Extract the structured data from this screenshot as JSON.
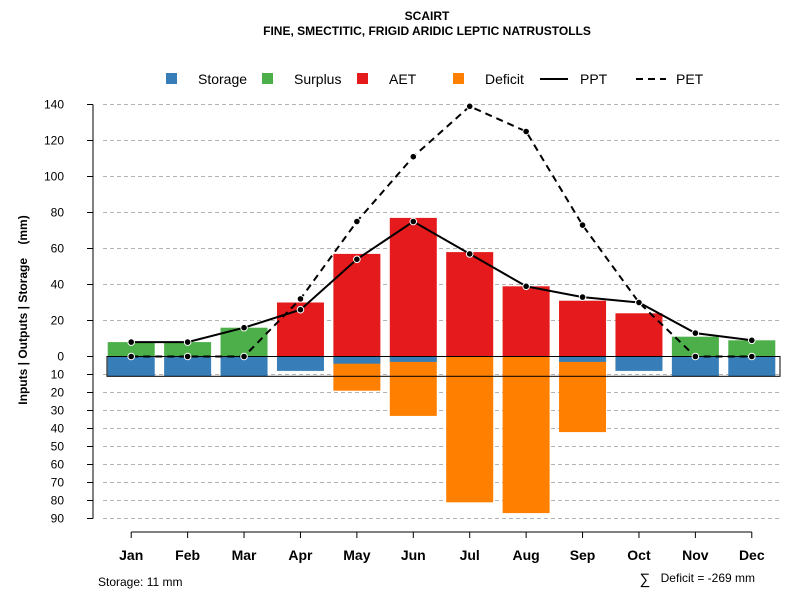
{
  "chart_data": {
    "type": "bar",
    "title": "SCAIRT",
    "subtitle": "FINE, SMECTITIC, FRIGID ARIDIC LEPTIC NATRUSTOLLS",
    "ylabel": "Inputs | Outputs | Storage    (mm)",
    "ylim_upper": [
      0,
      140
    ],
    "ylim_lower": [
      0,
      90
    ],
    "upper_ticks": [
      0,
      20,
      40,
      60,
      80,
      100,
      120,
      140
    ],
    "lower_ticks": [
      10,
      20,
      30,
      40,
      50,
      60,
      70,
      80,
      90
    ],
    "grid": true,
    "legend_position": "top",
    "categories": [
      "Jan",
      "Feb",
      "Mar",
      "Apr",
      "May",
      "Jun",
      "Jul",
      "Aug",
      "Sep",
      "Oct",
      "Nov",
      "Dec"
    ],
    "series": [
      {
        "name": "Storage",
        "color": "#377EB8",
        "values": [
          11,
          11,
          11,
          8,
          4,
          3,
          0,
          0,
          3,
          8,
          11,
          11
        ]
      },
      {
        "name": "Surplus",
        "color": "#4DAF4A",
        "values": [
          8,
          8,
          16,
          0,
          0,
          0,
          0,
          0,
          0,
          0,
          11,
          9
        ]
      },
      {
        "name": "AET",
        "color": "#E41A1C",
        "values": [
          0,
          0,
          0,
          30,
          57,
          77,
          58,
          39,
          31,
          24,
          0,
          0
        ]
      },
      {
        "name": "Deficit",
        "color": "#FF7F00",
        "values": [
          0,
          0,
          0,
          2,
          19,
          33,
          81,
          87,
          42,
          7,
          0,
          0
        ]
      },
      {
        "name": "PPT",
        "color": "#000000",
        "line_style": "solid",
        "values": [
          8,
          8,
          16,
          26,
          54,
          75,
          57,
          39,
          33,
          30,
          13,
          9
        ]
      },
      {
        "name": "PET",
        "color": "#000000",
        "line_style": "dashed",
        "values": [
          0,
          0,
          0,
          32,
          75,
          111,
          139,
          125,
          73,
          30,
          0,
          0
        ]
      }
    ]
  },
  "footer": {
    "storage_note": "Storage: 11 mm",
    "deficit_symbol": "∑",
    "deficit_note": "Deficit = -269 mm"
  }
}
